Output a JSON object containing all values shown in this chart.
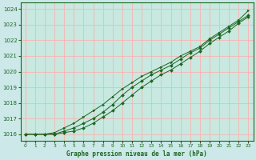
{
  "title": "Graphe pression niveau de la mer (hPa)",
  "bg_color": "#cce8e8",
  "plot_bg_color": "#c8e8e0",
  "grid_color": "#ffaaaa",
  "line_color": "#1a6620",
  "xlim": [
    -0.5,
    23.5
  ],
  "ylim": [
    1015.6,
    1024.4
  ],
  "yticks": [
    1016,
    1017,
    1018,
    1019,
    1020,
    1021,
    1022,
    1023,
    1024
  ],
  "xticks": [
    0,
    1,
    2,
    3,
    4,
    5,
    6,
    7,
    8,
    9,
    10,
    11,
    12,
    13,
    14,
    15,
    16,
    17,
    18,
    19,
    20,
    21,
    22,
    23
  ],
  "series": [
    [
      1016.0,
      1016.0,
      1016.0,
      1016.0,
      1016.1,
      1016.2,
      1016.4,
      1016.7,
      1017.1,
      1017.5,
      1018.0,
      1018.5,
      1019.0,
      1019.4,
      1019.8,
      1020.1,
      1020.5,
      1020.9,
      1021.3,
      1021.8,
      1022.2,
      1022.6,
      1023.1,
      1023.5
    ],
    [
      1016.0,
      1016.0,
      1016.0,
      1016.0,
      1016.2,
      1016.4,
      1016.7,
      1017.0,
      1017.4,
      1017.9,
      1018.5,
      1019.0,
      1019.4,
      1019.8,
      1020.1,
      1020.4,
      1020.8,
      1021.2,
      1021.5,
      1022.0,
      1022.4,
      1022.8,
      1023.2,
      1023.6
    ],
    [
      1016.0,
      1016.0,
      1016.0,
      1016.1,
      1016.4,
      1016.7,
      1017.1,
      1017.5,
      1017.9,
      1018.4,
      1018.9,
      1019.3,
      1019.7,
      1020.0,
      1020.3,
      1020.6,
      1021.0,
      1021.3,
      1021.6,
      1022.1,
      1022.5,
      1022.9,
      1023.3,
      1023.9
    ]
  ],
  "figsize": [
    3.2,
    2.0
  ],
  "dpi": 100
}
